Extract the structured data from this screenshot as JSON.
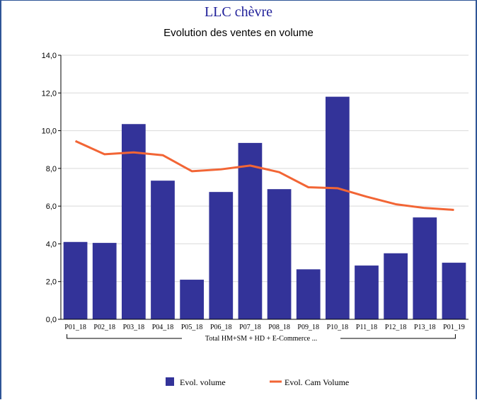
{
  "chart_data": {
    "type": "bar",
    "title": "LLC chèvre",
    "subtitle": "Evolution des ventes en volume",
    "xlabel": "",
    "ylabel": "",
    "group_label": "Total HM+SM + HD + E-Commerce ...",
    "categories": [
      "P01_18",
      "P02_18",
      "P03_18",
      "P04_18",
      "P05_18",
      "P06_18",
      "P07_18",
      "P08_18",
      "P09_18",
      "P10_18",
      "P11_18",
      "P12_18",
      "P13_18",
      "P01_19"
    ],
    "ylim": [
      0,
      14
    ],
    "yticks": [
      "0,0",
      "2,0",
      "4,0",
      "6,0",
      "8,0",
      "10,0",
      "12,0",
      "14,0"
    ],
    "grid": true,
    "legend_position": "bottom",
    "series": [
      {
        "name": "Evol. volume",
        "type": "bar",
        "color": "#333399",
        "values": [
          4.1,
          4.05,
          10.35,
          7.35,
          2.1,
          6.75,
          9.35,
          6.9,
          2.65,
          11.8,
          2.85,
          3.5,
          5.4,
          3.0
        ]
      },
      {
        "name": "Evol. Cam Volume",
        "type": "line",
        "color": "#f26535",
        "values": [
          9.45,
          8.75,
          8.85,
          8.7,
          7.85,
          7.95,
          8.15,
          7.8,
          7.0,
          6.95,
          6.5,
          6.1,
          5.9,
          5.8
        ]
      }
    ]
  }
}
